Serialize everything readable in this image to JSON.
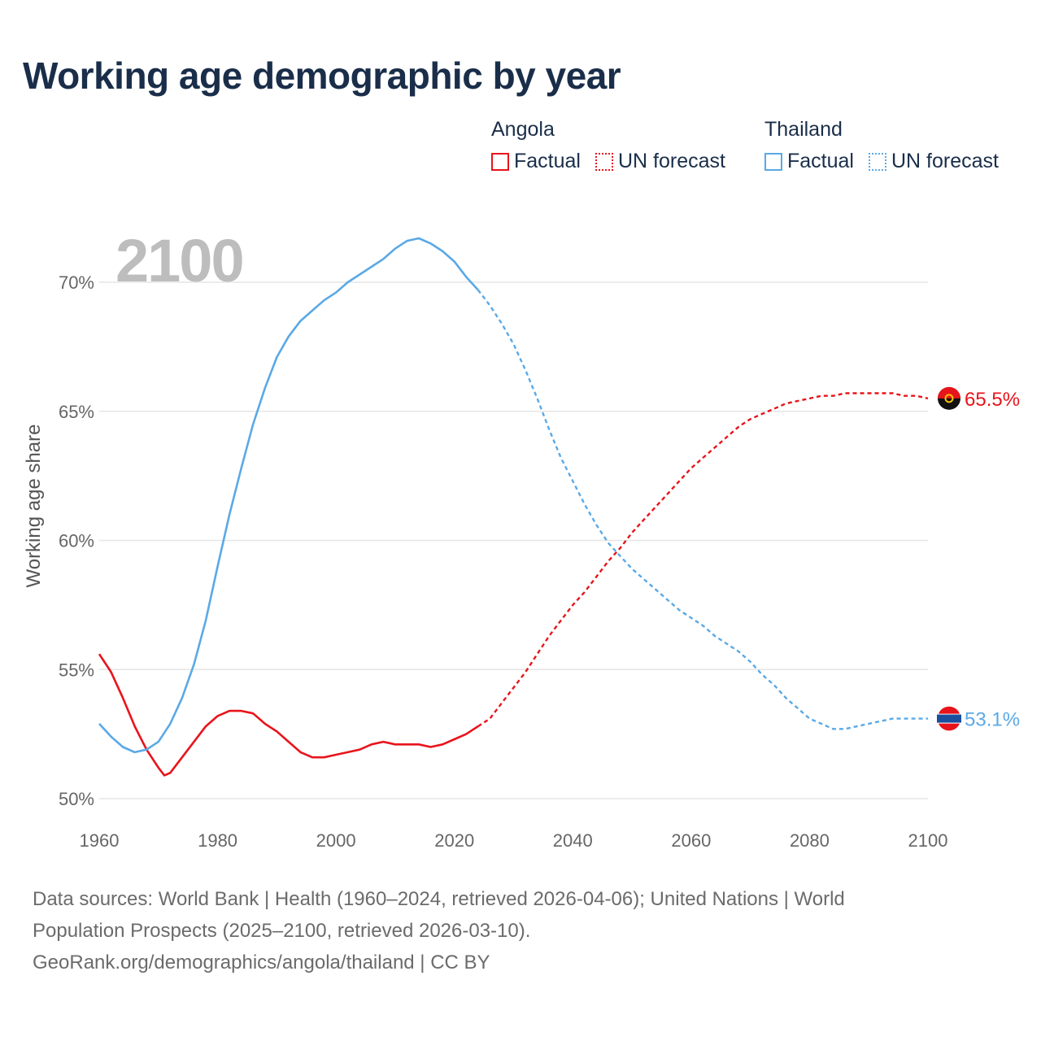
{
  "title": "Working age demographic by year",
  "year_watermark": "2100",
  "legend": {
    "groups": [
      {
        "name": "Angola",
        "color": "#e8141b",
        "factual_label": "Factual",
        "forecast_label": "UN forecast"
      },
      {
        "name": "Thailand",
        "color": "#5aa9e6",
        "factual_label": "Factual",
        "forecast_label": "UN forecast"
      }
    ]
  },
  "footer": {
    "line1": "Data sources: World Bank | Health (1960–2024, retrieved 2026-04-06); United Nations | World",
    "line2": "Population Prospects (2025–2100, retrieved 2026-03-10).",
    "line3": "GeoRank.org/demographics/angola/thailand | CC BY"
  },
  "chart_data": {
    "type": "line",
    "title": "Working age demographic by year",
    "xlabel": "",
    "ylabel": "Working age share",
    "xlim": [
      1960,
      2100
    ],
    "ylim": [
      50,
      72
    ],
    "x_ticks": [
      1960,
      1980,
      2000,
      2020,
      2040,
      2060,
      2080,
      2100
    ],
    "y_ticks": [
      50,
      55,
      60,
      65,
      70
    ],
    "x_tick_labels": [
      "1960",
      "1980",
      "2000",
      "2020",
      "2040",
      "2060",
      "2080",
      "2100"
    ],
    "y_tick_labels": [
      "50%",
      "55%",
      "60%",
      "65%",
      "70%"
    ],
    "factual_end_year": 2024,
    "grid": true,
    "series": [
      {
        "name": "Angola",
        "color": "#e8141b",
        "end_label": "65.5%",
        "flag": "angola",
        "points": [
          [
            1960,
            55.6
          ],
          [
            1962,
            54.9
          ],
          [
            1964,
            53.9
          ],
          [
            1966,
            52.8
          ],
          [
            1968,
            51.9
          ],
          [
            1970,
            51.2
          ],
          [
            1971,
            50.9
          ],
          [
            1972,
            51.0
          ],
          [
            1974,
            51.6
          ],
          [
            1976,
            52.2
          ],
          [
            1978,
            52.8
          ],
          [
            1980,
            53.2
          ],
          [
            1982,
            53.4
          ],
          [
            1984,
            53.4
          ],
          [
            1986,
            53.3
          ],
          [
            1988,
            52.9
          ],
          [
            1990,
            52.6
          ],
          [
            1992,
            52.2
          ],
          [
            1994,
            51.8
          ],
          [
            1996,
            51.6
          ],
          [
            1998,
            51.6
          ],
          [
            2000,
            51.7
          ],
          [
            2002,
            51.8
          ],
          [
            2004,
            51.9
          ],
          [
            2006,
            52.1
          ],
          [
            2008,
            52.2
          ],
          [
            2010,
            52.1
          ],
          [
            2012,
            52.1
          ],
          [
            2014,
            52.1
          ],
          [
            2016,
            52.0
          ],
          [
            2018,
            52.1
          ],
          [
            2020,
            52.3
          ],
          [
            2022,
            52.5
          ],
          [
            2024,
            52.8
          ],
          [
            2026,
            53.1
          ],
          [
            2028,
            53.7
          ],
          [
            2030,
            54.3
          ],
          [
            2032,
            54.9
          ],
          [
            2034,
            55.6
          ],
          [
            2036,
            56.3
          ],
          [
            2038,
            56.9
          ],
          [
            2040,
            57.5
          ],
          [
            2042,
            58.0
          ],
          [
            2044,
            58.6
          ],
          [
            2046,
            59.2
          ],
          [
            2048,
            59.7
          ],
          [
            2050,
            60.3
          ],
          [
            2052,
            60.8
          ],
          [
            2054,
            61.3
          ],
          [
            2056,
            61.8
          ],
          [
            2058,
            62.3
          ],
          [
            2060,
            62.8
          ],
          [
            2062,
            63.2
          ],
          [
            2064,
            63.6
          ],
          [
            2066,
            64.0
          ],
          [
            2068,
            64.4
          ],
          [
            2070,
            64.7
          ],
          [
            2072,
            64.9
          ],
          [
            2074,
            65.1
          ],
          [
            2076,
            65.3
          ],
          [
            2078,
            65.4
          ],
          [
            2080,
            65.5
          ],
          [
            2082,
            65.6
          ],
          [
            2084,
            65.6
          ],
          [
            2086,
            65.7
          ],
          [
            2088,
            65.7
          ],
          [
            2090,
            65.7
          ],
          [
            2092,
            65.7
          ],
          [
            2094,
            65.7
          ],
          [
            2096,
            65.6
          ],
          [
            2098,
            65.6
          ],
          [
            2100,
            65.5
          ]
        ]
      },
      {
        "name": "Thailand",
        "color": "#5aa9e6",
        "end_label": "53.1%",
        "flag": "thailand",
        "points": [
          [
            1960,
            52.9
          ],
          [
            1962,
            52.4
          ],
          [
            1964,
            52.0
          ],
          [
            1966,
            51.8
          ],
          [
            1968,
            51.9
          ],
          [
            1970,
            52.2
          ],
          [
            1972,
            52.9
          ],
          [
            1974,
            53.9
          ],
          [
            1976,
            55.2
          ],
          [
            1978,
            56.9
          ],
          [
            1980,
            59.0
          ],
          [
            1982,
            61.0
          ],
          [
            1984,
            62.8
          ],
          [
            1986,
            64.5
          ],
          [
            1988,
            65.9
          ],
          [
            1990,
            67.1
          ],
          [
            1992,
            67.9
          ],
          [
            1994,
            68.5
          ],
          [
            1996,
            68.9
          ],
          [
            1998,
            69.3
          ],
          [
            2000,
            69.6
          ],
          [
            2002,
            70.0
          ],
          [
            2004,
            70.3
          ],
          [
            2006,
            70.6
          ],
          [
            2008,
            70.9
          ],
          [
            2010,
            71.3
          ],
          [
            2012,
            71.6
          ],
          [
            2014,
            71.7
          ],
          [
            2016,
            71.5
          ],
          [
            2018,
            71.2
          ],
          [
            2020,
            70.8
          ],
          [
            2022,
            70.2
          ],
          [
            2024,
            69.7
          ],
          [
            2026,
            69.1
          ],
          [
            2028,
            68.4
          ],
          [
            2030,
            67.6
          ],
          [
            2032,
            66.6
          ],
          [
            2034,
            65.5
          ],
          [
            2036,
            64.3
          ],
          [
            2038,
            63.2
          ],
          [
            2040,
            62.3
          ],
          [
            2042,
            61.4
          ],
          [
            2044,
            60.6
          ],
          [
            2046,
            59.9
          ],
          [
            2048,
            59.4
          ],
          [
            2050,
            58.9
          ],
          [
            2052,
            58.5
          ],
          [
            2054,
            58.1
          ],
          [
            2056,
            57.7
          ],
          [
            2058,
            57.3
          ],
          [
            2060,
            57.0
          ],
          [
            2062,
            56.7
          ],
          [
            2064,
            56.3
          ],
          [
            2066,
            56.0
          ],
          [
            2068,
            55.7
          ],
          [
            2070,
            55.3
          ],
          [
            2072,
            54.8
          ],
          [
            2074,
            54.4
          ],
          [
            2076,
            53.9
          ],
          [
            2078,
            53.5
          ],
          [
            2080,
            53.1
          ],
          [
            2082,
            52.9
          ],
          [
            2084,
            52.7
          ],
          [
            2086,
            52.7
          ],
          [
            2088,
            52.8
          ],
          [
            2090,
            52.9
          ],
          [
            2092,
            53.0
          ],
          [
            2094,
            53.1
          ],
          [
            2096,
            53.1
          ],
          [
            2098,
            53.1
          ],
          [
            2100,
            53.1
          ]
        ]
      }
    ]
  }
}
